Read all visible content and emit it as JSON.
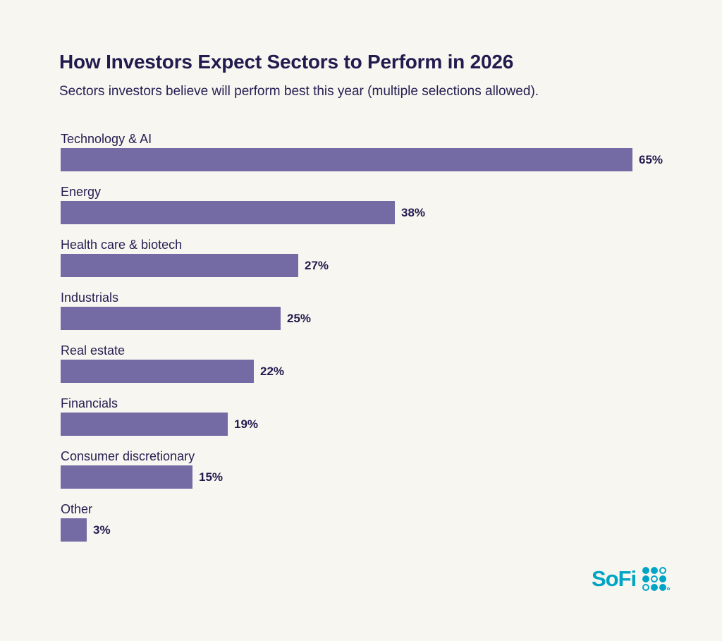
{
  "header": {
    "title": "How Investors Expect Sectors to Perform in 2026",
    "subtitle": "Sectors investors believe will perform best this year (multiple selections allowed)."
  },
  "chart_data": {
    "type": "bar",
    "orientation": "horizontal",
    "title": "How Investors Expect Sectors to Perform in 2026",
    "xlabel": "",
    "ylabel": "",
    "categories": [
      "Technology & AI",
      "Energy",
      "Health care & biotech",
      "Industrials",
      "Real estate",
      "Financials",
      "Consumer discretionary",
      "Other"
    ],
    "values": [
      65,
      38,
      27,
      25,
      22,
      19,
      15,
      3
    ],
    "value_labels": [
      "65%",
      "38%",
      "27%",
      "25%",
      "22%",
      "19%",
      "15%",
      "3%"
    ],
    "xlim": [
      0,
      65
    ],
    "grid": false,
    "legend": false,
    "bar_color": "#746BA5",
    "label_color": "#262052",
    "value_color": "#221B4E"
  },
  "branding": {
    "logo_text": "SoFi",
    "logo_color": "#00A5C6",
    "logo_dot_pattern": [
      [
        1,
        1,
        0
      ],
      [
        1,
        0,
        1
      ],
      [
        0,
        1,
        1
      ]
    ]
  },
  "colors": {
    "background": "#F8F6F1",
    "bar": "#746BA5",
    "text": "#221B4E",
    "accent_teal": "#00A5C6"
  }
}
